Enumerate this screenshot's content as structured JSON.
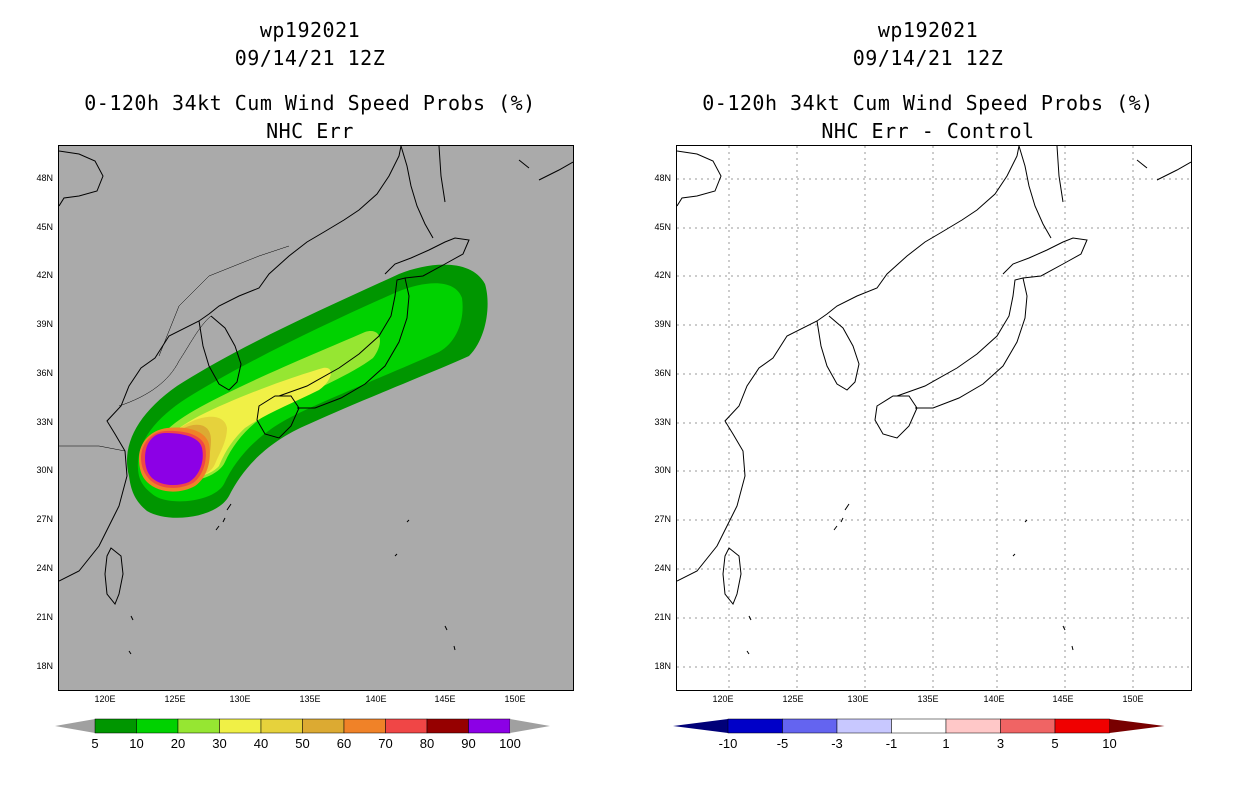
{
  "left": {
    "title1": "wp192021",
    "title2": "09/14/21 12Z",
    "title3": "0-120h 34kt Cum Wind Speed Probs (%)",
    "title4": "NHC Err",
    "background": "#aaaaaa"
  },
  "right": {
    "title1": "wp192021",
    "title2": "09/14/21 12Z",
    "title3": "0-120h 34kt Cum Wind Speed Probs (%)",
    "title4": "NHC Err - Control",
    "background": "#ffffff"
  },
  "lat_labels": [
    "48N",
    "45N",
    "42N",
    "39N",
    "36N",
    "33N",
    "30N",
    "27N",
    "24N",
    "21N",
    "18N"
  ],
  "lon_labels": [
    "120E",
    "125E",
    "130E",
    "135E",
    "140E",
    "145E",
    "150E"
  ],
  "left_colorbar": {
    "labels": [
      "5",
      "10",
      "20",
      "30",
      "40",
      "50",
      "60",
      "70",
      "80",
      "90",
      "100"
    ],
    "colors": [
      "#009600",
      "#00d200",
      "#96e632",
      "#f0f046",
      "#e6d23c",
      "#dcaa32",
      "#f08228",
      "#f04646",
      "#960000",
      "#8c00e6"
    ],
    "end_color": "#a0a0a0"
  },
  "right_colorbar": {
    "labels": [
      "-10",
      "-5",
      "-3",
      "-1",
      "1",
      "3",
      "5",
      "10"
    ],
    "colors": [
      "#0000c8",
      "#6464f0",
      "#c8c8ff",
      "#ffffff",
      "#ffc8c8",
      "#f06464",
      "#f00000"
    ],
    "low_end_color": "#000078",
    "high_end_color": "#780000"
  }
}
